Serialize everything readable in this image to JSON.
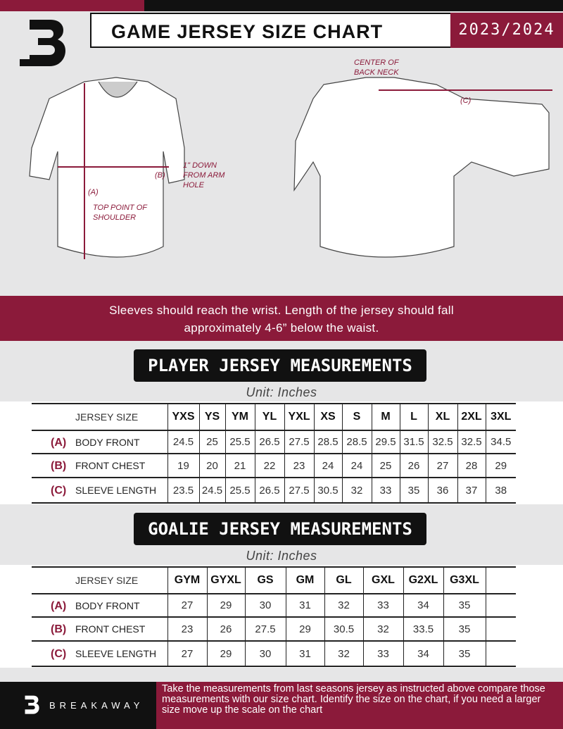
{
  "header": {
    "title": "GAME JERSEY SIZE CHART",
    "season": "2023/2024",
    "logo_text": "B"
  },
  "diagram": {
    "label_center_back_neck": "CENTER OF BACK NECK",
    "label_c": "(C)",
    "label_b": "(B)",
    "label_a": "(A)",
    "label_down": "1\" DOWN FROM ARM HOLE",
    "label_shoulder": "TOP POINT OF SHOULDER"
  },
  "banner": {
    "line1": "Sleeves should reach the wrist. Length of the jersey should fall",
    "line2": "approximately 4-6” below the waist."
  },
  "player": {
    "title": "PLAYER JERSEY MEASUREMENTS",
    "unit": "Unit: Inches",
    "size_label": "JERSEY SIZE",
    "sizes": [
      "YXS",
      "YS",
      "YM",
      "YL",
      "YXL",
      "XS",
      "S",
      "M",
      "L",
      "XL",
      "2XL",
      "3XL"
    ],
    "rows": [
      {
        "key": "(A)",
        "label": "BODY FRONT",
        "values": [
          "24.5",
          "25",
          "25.5",
          "26.5",
          "27.5",
          "28.5",
          "28.5",
          "29.5",
          "31.5",
          "32.5",
          "32.5",
          "34.5"
        ]
      },
      {
        "key": "(B)",
        "label": "FRONT CHEST",
        "values": [
          "19",
          "20",
          "21",
          "22",
          "23",
          "24",
          "24",
          "25",
          "26",
          "27",
          "28",
          "29"
        ]
      },
      {
        "key": "(C)",
        "label": "SLEEVE LENGTH",
        "values": [
          "23.5",
          "24.5",
          "25.5",
          "26.5",
          "27.5",
          "30.5",
          "32",
          "33",
          "35",
          "36",
          "37",
          "38"
        ]
      }
    ]
  },
  "goalie": {
    "title": "GOALIE JERSEY MEASUREMENTS",
    "unit": "Unit: Inches",
    "size_label": "JERSEY SIZE",
    "sizes": [
      "GYM",
      "GYXL",
      "GS",
      "GM",
      "GL",
      "GXL",
      "G2XL",
      "G3XL",
      ""
    ],
    "rows": [
      {
        "key": "(A)",
        "label": "BODY FRONT",
        "values": [
          "27",
          "29",
          "30",
          "31",
          "32",
          "33",
          "34",
          "35",
          ""
        ]
      },
      {
        "key": "(B)",
        "label": "FRONT CHEST",
        "values": [
          "23",
          "26",
          "27.5",
          "29",
          "30.5",
          "32",
          "33.5",
          "35",
          ""
        ]
      },
      {
        "key": "(C)",
        "label": "SLEEVE LENGTH",
        "values": [
          "27",
          "29",
          "30",
          "31",
          "32",
          "33",
          "34",
          "35",
          ""
        ]
      }
    ]
  },
  "footer": {
    "brand": "BREAKAWAY",
    "text": "Take the measurements from last seasons jersey as instructed above compare those measurements  with our size chart. Identify the size on the chart, if you need a larger size move up the scale on the chart"
  },
  "colors": {
    "accent": "#8b1a3a",
    "dark": "#111111",
    "background": "#e6e6e7"
  }
}
